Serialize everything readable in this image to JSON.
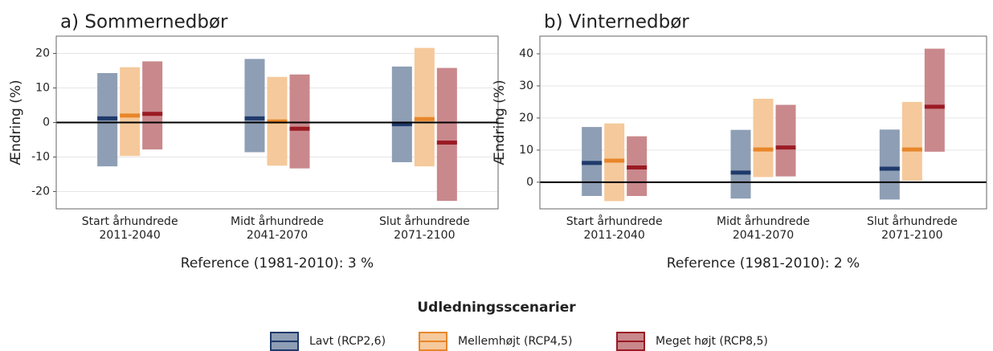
{
  "chart_data": [
    {
      "type": "range",
      "title": "a) Sommernedbør",
      "y_label": "Ændring (%)",
      "x_label": "Reference (1981-2010): 3 %",
      "legend_title": "Udledningsscenarier",
      "categories": [
        [
          "Start århundrede",
          "2011-2040"
        ],
        [
          "Midt århundrede",
          "2041-2070"
        ],
        [
          "Slut århundrede",
          "2071-2100"
        ]
      ],
      "ylim": [
        -25,
        25
      ],
      "yticks": [
        -20,
        -10,
        0,
        10,
        20
      ],
      "grid": true,
      "series": [
        {
          "name": "Lavt (RCP2,6)",
          "color": "#1f3a6b",
          "fill": "#8e9eb5",
          "low": [
            -12.7,
            -8.6,
            -11.5
          ],
          "high": [
            14.3,
            18.4,
            16.2
          ],
          "values": [
            1.2,
            1.2,
            -0.5
          ]
        },
        {
          "name": "Mellemhøjt (RCP4,5)",
          "color": "#e8862a",
          "fill": "#f5c99b",
          "low": [
            -9.7,
            -12.5,
            -12.7
          ],
          "high": [
            16,
            13.2,
            21.6
          ],
          "values": [
            2,
            0.3,
            1
          ]
        },
        {
          "name": "Meget højt (RCP8,5)",
          "color": "#9b1b24",
          "fill": "#c9888c",
          "low": [
            -7.8,
            -13.3,
            -22.7
          ],
          "high": [
            17.7,
            13.9,
            15.8
          ],
          "values": [
            2.5,
            -1.8,
            -5.8
          ]
        }
      ]
    },
    {
      "type": "range",
      "title": "b) Vinternedbør",
      "y_label": "Ændring (%)",
      "x_label": "Reference (1981-2010): 2 %",
      "categories": [
        [
          "Start århundrede",
          "2011-2040"
        ],
        [
          "Midt århundrede",
          "2041-2070"
        ],
        [
          "Slut århundrede",
          "2071-2100"
        ]
      ],
      "ylim": [
        -8.3,
        45.5
      ],
      "yticks": [
        0,
        10,
        20,
        30,
        40
      ],
      "grid": true,
      "series": [
        {
          "name": "Lavt (RCP2,6)",
          "color": "#1f3a6b",
          "fill": "#8e9eb5",
          "low": [
            -4.3,
            -5.1,
            -5.4
          ],
          "high": [
            17.2,
            16.3,
            16.4
          ],
          "values": [
            6,
            3,
            4.2
          ]
        },
        {
          "name": "Mellemhøjt (RCP4,5)",
          "color": "#e8862a",
          "fill": "#f5c99b",
          "low": [
            -5.9,
            1.6,
            0.5
          ],
          "high": [
            18.3,
            26,
            25
          ],
          "values": [
            6.7,
            10.2,
            10.2
          ]
        },
        {
          "name": "Meget højt (RCP8,5)",
          "color": "#9b1b24",
          "fill": "#c9888c",
          "low": [
            -4.3,
            1.8,
            9.5
          ],
          "high": [
            14.3,
            24.1,
            41.6
          ],
          "values": [
            4.6,
            10.8,
            23.5
          ]
        }
      ]
    }
  ]
}
